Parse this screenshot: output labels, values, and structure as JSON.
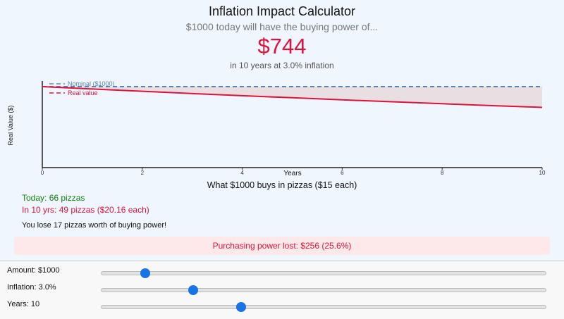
{
  "header": {
    "title": "Inflation Impact Calculator",
    "subtitle": "$1000 today will have the buying power of...",
    "result": "$744",
    "note": "in 10 years at 3.0% inflation"
  },
  "chart_data": {
    "type": "line",
    "ylabel": "Real Value ($)",
    "xlabel": "Years",
    "x": [
      0,
      1,
      2,
      3,
      4,
      5,
      6,
      7,
      8,
      9,
      10
    ],
    "series": [
      {
        "name": "Nominal ($1000)",
        "color": "#5b84b1",
        "dash": true,
        "values": [
          1000,
          1000,
          1000,
          1000,
          1000,
          1000,
          1000,
          1000,
          1000,
          1000,
          1000
        ]
      },
      {
        "name": "Real value",
        "color": "#dc143c",
        "dash": false,
        "values": [
          1000,
          971,
          943,
          915,
          888,
          863,
          837,
          813,
          789,
          766,
          744
        ]
      }
    ],
    "area_color": "#e9dfe3",
    "xlim": [
      0,
      10
    ],
    "xticks": [
      0,
      2,
      4,
      6,
      8,
      10
    ],
    "ylim": [
      0,
      1070
    ]
  },
  "pizzas": {
    "title": "What $1000 buys in pizzas ($15 each)",
    "today": "Today: 66 pizzas",
    "future": "In 10 yrs: 49 pizzas ($20.16 each)",
    "loss": "You lose 17 pizzas worth of buying power!",
    "lost_power": "Purchasing power lost: $256 (25.6%)"
  },
  "controls": [
    {
      "label": "Amount: $1000"
    },
    {
      "label": "Inflation: 3.0%"
    },
    {
      "label": "Years: 10"
    }
  ]
}
